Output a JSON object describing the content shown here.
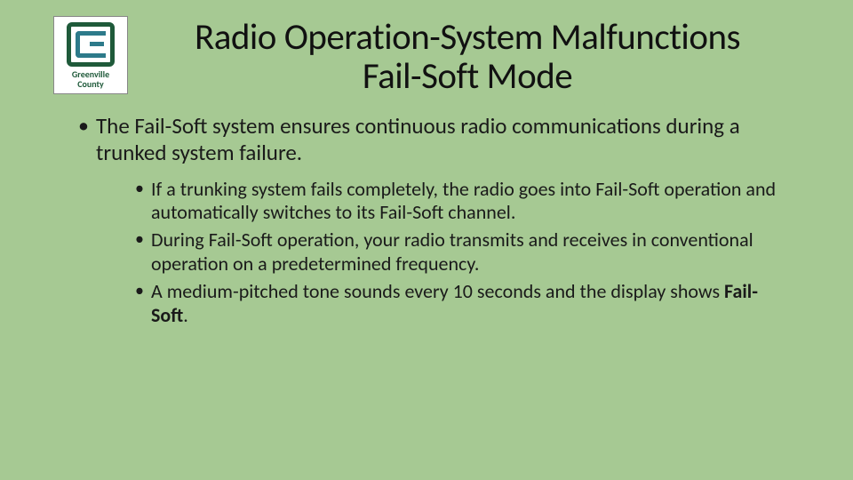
{
  "logo": {
    "line1": "Greenville",
    "line2": "County"
  },
  "title": {
    "line1": "Radio Operation-System Malfunctions",
    "line2": "Fail-Soft Mode"
  },
  "bullets": {
    "main": "The Fail-Soft system ensures continuous radio communications during a trunked system failure.",
    "sub": [
      "If a trunking system fails completely, the radio goes into Fail-Soft operation and automatically switches to its Fail-Soft channel.",
      "During Fail-Soft operation, your radio transmits and receives in conventional operation on a predetermined frequency."
    ],
    "sub3_prefix": "A medium-pitched tone sounds every 10 seconds and the display shows ",
    "sub3_bold": "Fail-Soft",
    "sub3_suffix": "."
  },
  "colors": {
    "background": "#a6c993",
    "text": "#1a1a1a",
    "logo_green": "#1f5a3a",
    "logo_teal": "#2d7a8a"
  }
}
